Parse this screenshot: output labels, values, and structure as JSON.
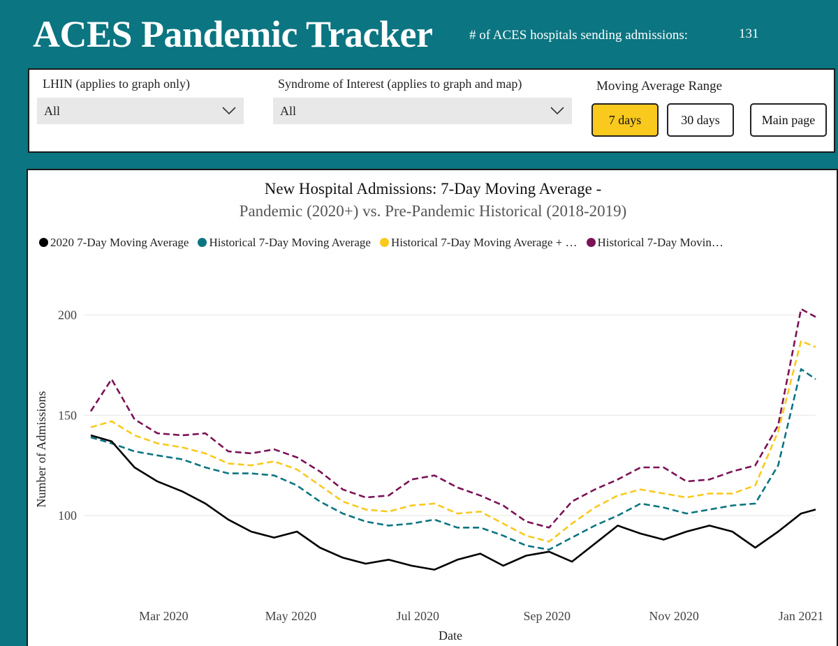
{
  "header": {
    "title": "ACES Pandemic Tracker",
    "hospitals_label": "# of ACES hospitals sending admissions:",
    "hospitals_count": "131"
  },
  "filters": {
    "lhin": {
      "label": "LHIN (applies to graph only)",
      "value": "All"
    },
    "syndrome": {
      "label": "Syndrome of Interest (applies to graph and map)",
      "value": "All"
    },
    "moving_average": {
      "label": "Moving Average Range",
      "options": [
        "7 days",
        "30 days"
      ],
      "selected": "7 days"
    },
    "main_page_label": "Main page"
  },
  "icons": {
    "dropdown": "chevron-down-icon"
  },
  "colors": {
    "background": "#0b7581",
    "active_button": "#f9c91e",
    "series_2020": "#000000",
    "series_historical": "#0b7581",
    "series_upper": "#f9c91e",
    "series_upper2": "#7a1256"
  },
  "chart_data": {
    "type": "line",
    "title": "New Hospital Admissions: 7-Day Moving Average -",
    "subtitle": "Pandemic (2020+) vs. Pre-Pandemic Historical (2018-2019)",
    "xlabel": "Date",
    "ylabel": "Number of Admissions",
    "ylim": [
      60,
      220
    ],
    "yticks": [
      100,
      150,
      200
    ],
    "x_range": [
      "2020-01-26",
      "2021-01-08"
    ],
    "xtick_labels": [
      "Mar 2020",
      "May 2020",
      "Jul 2020",
      "Sep 2020",
      "Nov 2020",
      "Jan 2021"
    ],
    "xtick_dates": [
      "2020-03-01",
      "2020-05-01",
      "2020-07-01",
      "2020-09-01",
      "2020-11-01",
      "2021-01-01"
    ],
    "grid": true,
    "legend_position": "top",
    "x": [
      "2020-01-26",
      "2020-02-05",
      "2020-02-16",
      "2020-02-27",
      "2020-03-10",
      "2020-03-21",
      "2020-04-01",
      "2020-04-12",
      "2020-04-23",
      "2020-05-04",
      "2020-05-15",
      "2020-05-26",
      "2020-06-06",
      "2020-06-17",
      "2020-06-28",
      "2020-07-09",
      "2020-07-20",
      "2020-07-31",
      "2020-08-11",
      "2020-08-22",
      "2020-09-02",
      "2020-09-13",
      "2020-09-24",
      "2020-10-05",
      "2020-10-16",
      "2020-10-27",
      "2020-11-07",
      "2020-11-18",
      "2020-11-29",
      "2020-12-10",
      "2020-12-21",
      "2021-01-01",
      "2021-01-08"
    ],
    "series": [
      {
        "name": "2020 7-Day Moving Average",
        "color": "#000000",
        "style": "solid",
        "values": [
          140,
          137,
          124,
          117,
          112,
          106,
          98,
          92,
          89,
          92,
          84,
          79,
          76,
          78,
          75,
          73,
          78,
          81,
          75,
          80,
          82,
          77,
          86,
          95,
          91,
          88,
          92,
          95,
          92,
          84,
          92,
          101,
          103
        ]
      },
      {
        "name": "Historical 7-Day Moving Average",
        "color": "#0b7581",
        "style": "dashed",
        "values": [
          139,
          136,
          132,
          130,
          128,
          124,
          121,
          121,
          120,
          115,
          107,
          101,
          97,
          95,
          96,
          98,
          94,
          94,
          90,
          85,
          83,
          89,
          95,
          100,
          106,
          104,
          101,
          103,
          105,
          106,
          125,
          173,
          168
        ]
      },
      {
        "name": "Historical 7-Day Moving Average + …",
        "color": "#f9c91e",
        "style": "dashed",
        "values": [
          144,
          147,
          140,
          136,
          134,
          131,
          126,
          125,
          127,
          123,
          115,
          107,
          103,
          102,
          105,
          106,
          101,
          102,
          96,
          90,
          87,
          96,
          104,
          110,
          113,
          111,
          109,
          111,
          111,
          115,
          142,
          187,
          184
        ]
      },
      {
        "name": "Historical 7-Day Movin…",
        "color": "#7a1256",
        "style": "dashed",
        "values": [
          152,
          168,
          148,
          141,
          140,
          141,
          132,
          131,
          133,
          129,
          122,
          113,
          109,
          110,
          118,
          120,
          114,
          110,
          105,
          97,
          94,
          107,
          113,
          118,
          124,
          124,
          117,
          118,
          122,
          125,
          145,
          203,
          199
        ]
      }
    ]
  }
}
